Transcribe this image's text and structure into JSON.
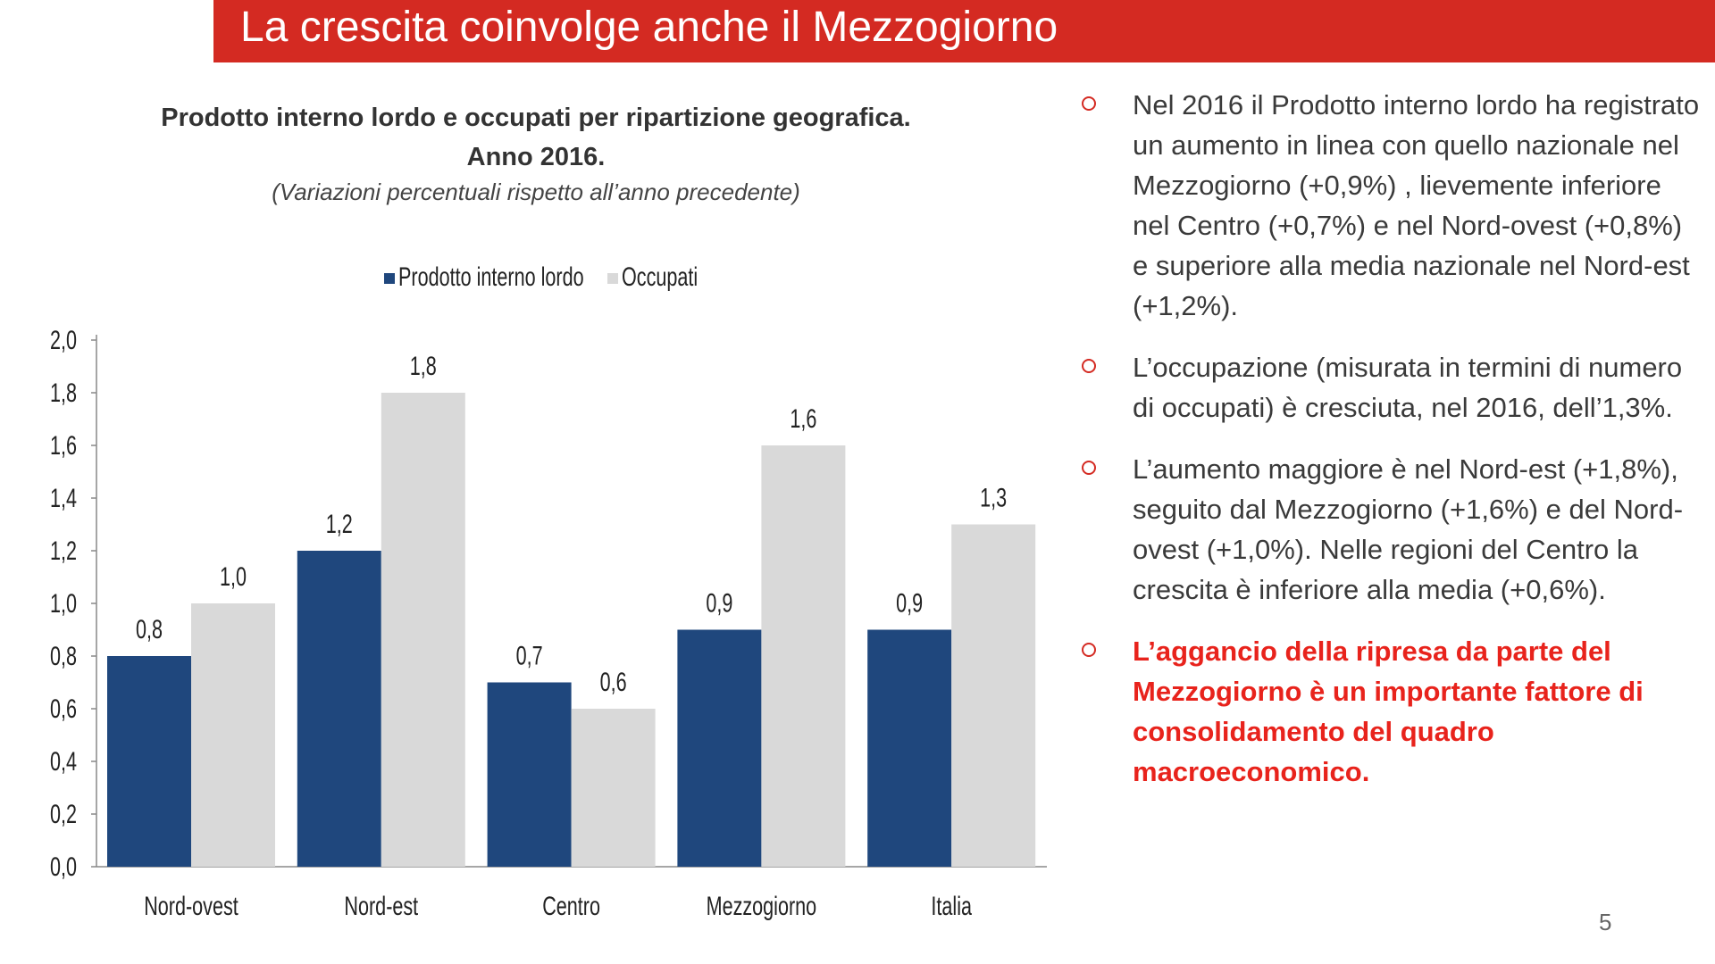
{
  "slide": {
    "title": "La crescita coinvolge anche il Mezzogiorno",
    "page_number": "5",
    "accent_color": "#d42a22",
    "bullet_marker": "circle-outline-icon"
  },
  "chart_data": {
    "type": "bar",
    "title_line1": "Prodotto interno lordo e occupati per ripartizione geografica.",
    "title_line2": "Anno 2016.",
    "subtitle": "(Variazioni percentuali rispetto all’anno precedente)",
    "categories": [
      "Nord-ovest",
      "Nord-est",
      "Centro",
      "Mezzogiorno",
      "Italia"
    ],
    "series": [
      {
        "name": "Prodotto interno lordo",
        "color": "#1f477d",
        "values": [
          0.8,
          1.2,
          0.7,
          0.9,
          0.9
        ],
        "labels": [
          "0,8",
          "1,2",
          "0,7",
          "0,9",
          "0,9"
        ]
      },
      {
        "name": "Occupati",
        "color": "#d9d9d9",
        "values": [
          1.0,
          1.8,
          0.6,
          1.6,
          1.3
        ],
        "labels": [
          "1,0",
          "1,8",
          "0,6",
          "1,6",
          "1,3"
        ]
      }
    ],
    "ylim": [
      0,
      2.0
    ],
    "yticks": [
      "0,0",
      "0,2",
      "0,4",
      "0,6",
      "0,8",
      "1,0",
      "1,2",
      "1,4",
      "1,6",
      "1,8",
      "2,0"
    ],
    "legend_position": "top-center",
    "grid": false
  },
  "bullets": [
    {
      "text": "Nel 2016 il Prodotto interno lordo ha registrato un aumento in linea con quello nazionale nel Mezzogiorno (+0,9%) , lievemente inferiore nel Centro (+0,7%) e nel Nord-ovest (+0,8%) e superiore alla media nazionale nel Nord-est (+1,2%).",
      "emphasis": false
    },
    {
      "text": "L’occupazione (misurata in termini di numero di occupati) è cresciuta, nel 2016, dell’1,3%.",
      "emphasis": false
    },
    {
      "text": "L’aumento maggiore è nel Nord-est (+1,8%), seguito dal Mezzogiorno (+1,6%) e del Nord-ovest (+1,0%). Nelle regioni del Centro la crescita è inferiore alla media (+0,6%).",
      "emphasis": false
    },
    {
      "text": "L’aggancio della ripresa da parte del Mezzogiorno è un importante fattore di consolidamento del quadro macroeconomico.",
      "emphasis": true
    }
  ]
}
